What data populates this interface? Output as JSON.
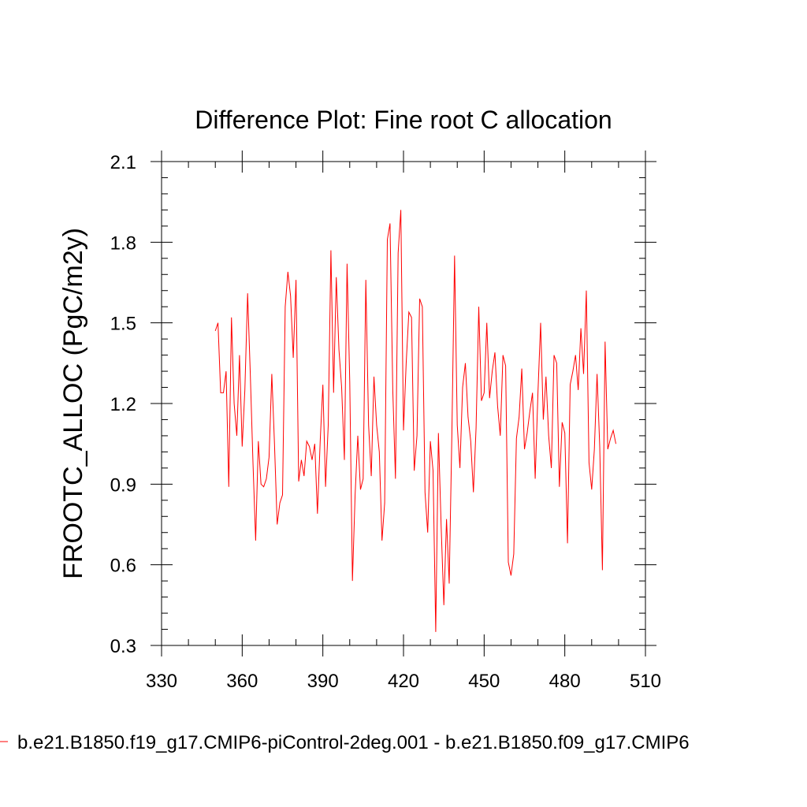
{
  "chart_data": {
    "type": "line",
    "title": "Difference Plot: Fine root C allocation",
    "xlabel": "",
    "ylabel": "FROOTC_ALLOC  (PgC/m2y)",
    "xlim": [
      330,
      510
    ],
    "ylim": [
      0.3,
      2.1
    ],
    "xticks": [
      330,
      360,
      390,
      420,
      450,
      480,
      510
    ],
    "xtick_labels": [
      "330",
      "360",
      "390",
      "420",
      "450",
      "480",
      "510"
    ],
    "yticks": [
      0.3,
      0.6,
      0.9,
      1.2,
      1.5,
      1.8,
      2.1
    ],
    "ytick_labels": [
      "0.3",
      "0.6",
      "0.9",
      "1.2",
      "1.5",
      "1.8",
      "2.1"
    ],
    "grid": false,
    "legend_placement": "bottom",
    "series": [
      {
        "name": "b.e21.B1850.f19_g17.CMIP6-piControl-2deg.001 - b.e21.B1850.f09_g17.CMIP6",
        "color": "#ff0000",
        "x": [
          350,
          351,
          352,
          353,
          354,
          355,
          356,
          357,
          358,
          359,
          360,
          361,
          362,
          363,
          364,
          365,
          366,
          367,
          368,
          369,
          370,
          371,
          372,
          373,
          374,
          375,
          376,
          377,
          378,
          379,
          380,
          381,
          382,
          383,
          384,
          385,
          386,
          387,
          388,
          389,
          390,
          391,
          392,
          393,
          394,
          395,
          396,
          397,
          398,
          399,
          400,
          401,
          402,
          403,
          404,
          405,
          406,
          407,
          408,
          409,
          410,
          411,
          412,
          413,
          414,
          415,
          416,
          417,
          418,
          419,
          420,
          421,
          422,
          423,
          424,
          425,
          426,
          427,
          428,
          429,
          430,
          431,
          432,
          433,
          434,
          435,
          436,
          437,
          438,
          439,
          440,
          441,
          442,
          443,
          444,
          445,
          446,
          447,
          448,
          449,
          450,
          451,
          452,
          453,
          454,
          455,
          456,
          457,
          458,
          459,
          460,
          461,
          462,
          463,
          464,
          465,
          466,
          467,
          468,
          469,
          470,
          471,
          472,
          473,
          474,
          475,
          476,
          477,
          478,
          479,
          480,
          481,
          482,
          483,
          484,
          485,
          486,
          487,
          488,
          489,
          490,
          491,
          492,
          493,
          494,
          495,
          496,
          497,
          498,
          499
        ],
        "values": [
          1.47,
          1.5,
          1.24,
          1.24,
          1.32,
          0.89,
          1.52,
          1.2,
          1.08,
          1.38,
          1.04,
          1.25,
          1.61,
          1.31,
          0.98,
          0.69,
          1.06,
          0.9,
          0.89,
          0.92,
          1.0,
          1.31,
          1.05,
          0.75,
          0.83,
          0.86,
          1.56,
          1.69,
          1.6,
          1.37,
          1.66,
          0.91,
          0.99,
          0.93,
          1.06,
          1.04,
          0.99,
          1.05,
          0.79,
          1.06,
          1.27,
          0.89,
          1.12,
          1.77,
          1.24,
          1.67,
          1.4,
          1.26,
          0.99,
          1.72,
          1.28,
          0.54,
          0.86,
          1.08,
          0.88,
          0.92,
          1.66,
          1.12,
          0.93,
          1.3,
          1.12,
          1.02,
          0.69,
          0.83,
          1.81,
          1.87,
          1.25,
          0.92,
          1.76,
          1.92,
          1.1,
          1.35,
          1.54,
          1.52,
          0.95,
          1.08,
          1.59,
          1.56,
          0.87,
          0.72,
          1.06,
          0.95,
          0.35,
          1.09,
          0.74,
          0.45,
          0.77,
          0.53,
          1.09,
          1.75,
          1.12,
          0.96,
          1.26,
          1.35,
          1.15,
          1.06,
          0.87,
          1.11,
          1.56,
          1.21,
          1.24,
          1.5,
          1.22,
          1.32,
          1.39,
          1.19,
          1.08,
          1.38,
          1.34,
          0.61,
          0.56,
          0.64,
          1.07,
          1.15,
          1.33,
          1.03,
          1.09,
          1.17,
          1.24,
          0.92,
          1.24,
          1.5,
          1.14,
          1.3,
          1.08,
          0.96,
          1.38,
          1.35,
          0.89,
          1.13,
          1.09,
          0.68,
          1.27,
          1.32,
          1.38,
          1.25,
          1.48,
          1.31,
          1.62,
          0.98,
          0.88,
          1.03,
          1.31,
          1.04,
          0.58,
          1.43,
          1.03,
          1.07,
          1.1,
          1.05
        ]
      }
    ]
  }
}
